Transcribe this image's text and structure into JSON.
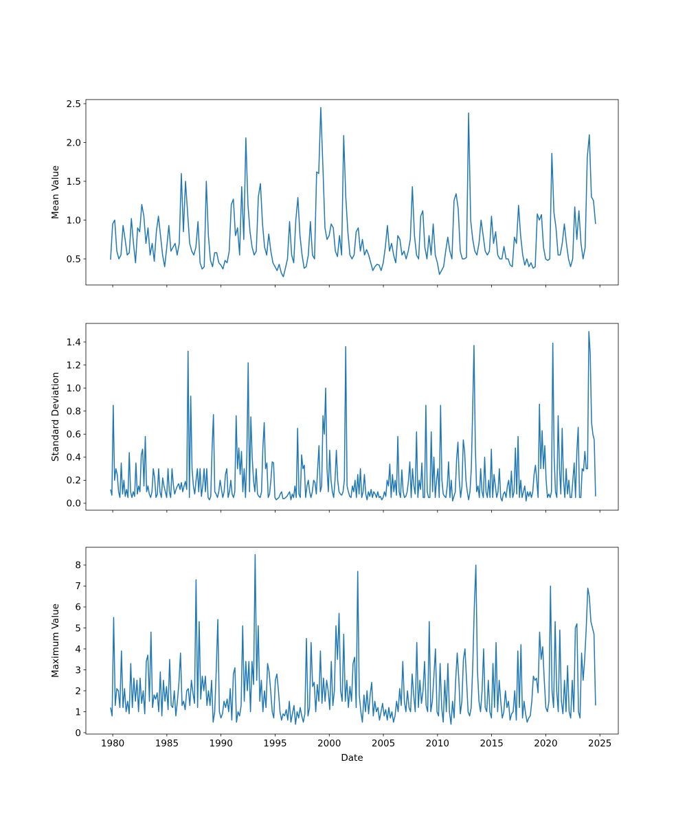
{
  "chart_data": [
    {
      "type": "line",
      "ylabel": "Mean Value",
      "xlabel": "",
      "xlim": [
        1977.52,
        2026.7
      ],
      "ylim": [
        0.164,
        2.553
      ],
      "yticks": [
        0.5,
        1.0,
        1.5,
        2.0,
        2.5
      ],
      "ytick_labels": [
        "0.5",
        "1.0",
        "1.5",
        "2.0",
        "2.5"
      ],
      "x_start": 1979.8,
      "x_end": 2024.6,
      "color": "#1f77b4",
      "values": [
        0.49,
        0.95,
        1.0,
        0.6,
        0.5,
        0.55,
        0.93,
        0.75,
        0.55,
        0.58,
        1.02,
        0.7,
        0.45,
        0.9,
        0.85,
        1.2,
        1.05,
        0.7,
        0.9,
        0.55,
        0.7,
        0.47,
        0.85,
        1.05,
        0.8,
        0.55,
        0.4,
        0.65,
        0.93,
        0.6,
        0.65,
        0.7,
        0.55,
        0.7,
        1.6,
        0.85,
        1.5,
        1.1,
        0.7,
        0.6,
        0.55,
        0.65,
        0.98,
        0.45,
        0.37,
        0.4,
        1.5,
        0.8,
        0.48,
        0.4,
        0.58,
        0.58,
        0.45,
        0.42,
        0.37,
        0.48,
        0.45,
        0.6,
        1.2,
        1.27,
        0.8,
        0.9,
        0.55,
        1.43,
        0.75,
        2.06,
        1.2,
        0.85,
        0.65,
        0.55,
        0.6,
        1.3,
        1.47,
        0.95,
        0.65,
        0.55,
        0.82,
        0.6,
        0.45,
        0.4,
        0.35,
        0.43,
        0.32,
        0.27,
        0.38,
        0.5,
        0.98,
        0.55,
        0.45,
        1.0,
        1.29,
        0.8,
        0.55,
        0.38,
        0.4,
        0.55,
        0.98,
        0.55,
        0.5,
        1.62,
        1.6,
        2.45,
        1.7,
        0.9,
        0.75,
        0.8,
        0.95,
        0.9,
        0.6,
        0.53,
        0.8,
        0.55,
        2.09,
        1.3,
        0.85,
        0.55,
        0.5,
        0.55,
        0.85,
        0.9,
        0.6,
        0.75,
        0.55,
        0.62,
        0.55,
        0.45,
        0.35,
        0.4,
        0.43,
        0.42,
        0.35,
        0.45,
        0.65,
        0.93,
        0.6,
        0.7,
        0.55,
        0.45,
        0.8,
        0.75,
        0.55,
        0.6,
        0.5,
        0.6,
        0.75,
        1.43,
        0.8,
        0.55,
        0.5,
        1.05,
        1.12,
        0.65,
        0.5,
        0.8,
        0.55,
        0.95,
        0.55,
        0.45,
        0.3,
        0.35,
        0.4,
        0.6,
        0.78,
        0.6,
        0.5,
        1.25,
        1.34,
        1.15,
        0.6,
        0.5,
        0.5,
        0.52,
        2.38,
        1.0,
        0.75,
        0.6,
        0.55,
        0.7,
        1.0,
        0.8,
        0.6,
        0.55,
        0.6,
        1.05,
        0.7,
        0.85,
        0.55,
        0.5,
        0.5,
        0.66,
        0.5,
        0.5,
        0.42,
        0.4,
        0.78,
        0.7,
        1.19,
        0.8,
        0.55,
        0.42,
        0.5,
        0.4,
        0.45,
        0.38,
        0.4,
        1.08,
        1.0,
        1.07,
        0.65,
        0.5,
        0.48,
        0.5,
        1.86,
        1.1,
        0.9,
        0.55,
        0.55,
        0.7,
        0.95,
        0.7,
        0.5,
        0.4,
        0.5,
        1.17,
        0.75,
        1.12,
        0.7,
        0.5,
        0.65,
        1.8,
        2.1,
        1.3,
        1.25,
        0.95
      ]
    },
    {
      "type": "line",
      "ylabel": "Standard Deviation",
      "xlabel": "",
      "xlim": [
        1977.52,
        2026.7
      ],
      "ylim": [
        -0.06,
        1.561
      ],
      "yticks": [
        0.0,
        0.2,
        0.4,
        0.6,
        0.8,
        1.0,
        1.2,
        1.4
      ],
      "ytick_labels": [
        "0.0",
        "0.2",
        "0.4",
        "0.6",
        "0.8",
        "1.0",
        "1.2",
        "1.4"
      ],
      "x_start": 1979.8,
      "x_end": 2024.6,
      "color": "#1f77b4",
      "values": [
        0.12,
        0.07,
        0.85,
        0.2,
        0.3,
        0.25,
        0.1,
        0.05,
        0.35,
        0.08,
        0.2,
        0.06,
        0.12,
        0.05,
        0.44,
        0.1,
        0.05,
        0.1,
        0.06,
        0.35,
        0.08,
        0.15,
        0.1,
        0.42,
        0.47,
        0.15,
        0.58,
        0.1,
        0.15,
        0.08,
        0.05,
        0.1,
        0.3,
        0.22,
        0.05,
        0.08,
        0.3,
        0.1,
        0.05,
        0.22,
        0.15,
        0.1,
        0.05,
        0.3,
        0.1,
        0.05,
        0.3,
        0.16,
        0.08,
        0.12,
        0.15,
        0.17,
        0.12,
        0.18,
        0.1,
        0.15,
        0.19,
        0.12,
        1.32,
        0.05,
        0.93,
        0.3,
        0.15,
        0.08,
        0.2,
        0.3,
        0.1,
        0.3,
        0.06,
        0.15,
        0.3,
        0.1,
        0.3,
        0.05,
        0.03,
        0.06,
        0.48,
        0.77,
        0.1,
        0.08,
        0.05,
        0.1,
        0.2,
        0.12,
        0.05,
        0.1,
        0.25,
        0.3,
        0.05,
        0.1,
        0.2,
        0.08,
        0.05,
        0.1,
        0.76,
        0.3,
        0.48,
        0.25,
        0.45,
        0.1,
        0.3,
        0.05,
        0.4,
        1.22,
        0.1,
        0.75,
        0.4,
        0.2,
        0.1,
        0.3,
        0.08,
        0.06,
        0.05,
        0.1,
        0.48,
        0.7,
        0.3,
        0.35,
        0.05,
        0.08,
        0.2,
        0.36,
        0.35,
        0.05,
        0.03,
        0.04,
        0.05,
        0.08,
        0.1,
        0.04,
        0.04,
        0.05,
        0.06,
        0.08,
        0.1,
        0.03,
        0.08,
        0.05,
        0.15,
        0.05,
        0.65,
        0.08,
        0.05,
        0.42,
        0.3,
        0.33,
        0.05,
        0.15,
        0.2,
        0.1,
        0.05,
        0.1,
        0.2,
        0.18,
        0.08,
        0.3,
        0.5,
        0.1,
        0.15,
        0.76,
        0.6,
        1.0,
        0.3,
        0.1,
        0.46,
        0.2,
        0.1,
        0.05,
        0.2,
        0.46,
        0.2,
        0.1,
        0.08,
        0.07,
        0.1,
        0.2,
        1.36,
        0.15,
        0.1,
        0.06,
        0.05,
        0.15,
        0.1,
        0.2,
        0.05,
        0.25,
        0.08,
        0.3,
        0.05,
        0.1,
        0.25,
        0.08,
        0.03,
        0.1,
        0.06,
        0.12,
        0.05,
        0.1,
        0.08,
        0.05,
        0.1,
        0.05,
        0.06,
        0.03,
        0.05,
        0.1,
        0.06,
        0.2,
        0.15,
        0.34,
        0.05,
        0.25,
        0.1,
        0.2,
        0.07,
        0.58,
        0.1,
        0.05,
        0.29,
        0.1,
        0.05,
        0.06,
        0.1,
        0.2,
        0.36,
        0.05,
        0.3,
        0.15,
        0.08,
        0.62,
        0.05,
        0.2,
        0.12,
        0.35,
        0.05,
        0.05,
        0.85,
        0.1,
        0.05,
        0.05,
        0.62,
        0.1,
        0.4,
        0.05,
        0.2,
        0.3,
        0.05,
        0.85,
        0.2,
        0.08,
        0.06,
        0.05,
        0.15,
        0.36,
        0.05,
        0.2,
        0.02,
        0.06,
        0.1,
        0.38,
        0.53,
        0.2,
        0.05,
        0.15,
        0.55,
        0.45,
        0.2,
        0.1,
        0.03,
        0.1,
        0.3,
        0.8,
        1.37,
        0.5,
        0.1,
        0.15,
        0.05,
        0.3,
        0.1,
        0.05,
        0.4,
        0.1,
        0.05,
        0.2,
        0.05,
        0.47,
        0.05,
        0.25,
        0.15,
        0.05,
        0.1,
        0.3,
        0.05,
        0.02,
        0.08,
        0.1,
        0.05,
        0.15,
        0.2,
        0.05,
        0.28,
        0.05,
        0.1,
        0.48,
        0.08,
        0.58,
        0.05,
        0.2,
        0.05,
        0.1,
        0.15,
        0.02,
        0.1,
        0.06,
        0.1,
        0.05,
        0.1,
        0.25,
        0.33,
        0.2,
        0.05,
        0.86,
        0.3,
        0.63,
        0.3,
        0.5,
        0.2,
        0.05,
        0.08,
        0.05,
        0.1,
        1.39,
        0.4,
        0.1,
        0.05,
        0.76,
        0.3,
        0.08,
        0.65,
        0.2,
        0.05,
        0.3,
        0.08,
        0.2,
        0.05,
        0.05,
        0.2,
        0.35,
        0.05,
        0.45,
        0.66,
        0.05,
        0.05,
        0.3,
        0.28,
        0.45,
        0.3,
        0.3,
        1.49,
        1.3,
        0.7,
        0.6,
        0.55,
        0.06
      ]
    },
    {
      "type": "line",
      "ylabel": "Maximum Value",
      "xlabel": "Date",
      "xlim": [
        1977.52,
        2026.7
      ],
      "ylim": [
        -0.066,
        8.85
      ],
      "yticks": [
        0,
        1,
        2,
        3,
        4,
        5,
        6,
        7,
        8
      ],
      "ytick_labels": [
        "0",
        "1",
        "2",
        "3",
        "4",
        "5",
        "6",
        "7",
        "8"
      ],
      "x_start": 1979.8,
      "x_end": 2024.6,
      "color": "#1f77b4",
      "values": [
        1.2,
        0.8,
        5.5,
        1.3,
        2.1,
        2.0,
        1.2,
        3.9,
        1.2,
        2.1,
        1.0,
        1.5,
        0.9,
        3.3,
        1.2,
        2.6,
        1.5,
        2.5,
        1.0,
        2.6,
        1.4,
        2.0,
        0.9,
        3.4,
        3.7,
        1.5,
        4.8,
        1.2,
        1.8,
        1.6,
        1.9,
        1.0,
        2.9,
        0.8,
        2.5,
        1.5,
        2.2,
        1.1,
        3.5,
        1.3,
        1.2,
        2.0,
        0.8,
        1.5,
        2.4,
        3.8,
        1.3,
        1.5,
        1.1,
        2.0,
        2.1,
        1.3,
        2.5,
        1.9,
        1.4,
        7.3,
        1.2,
        5.3,
        1.6,
        2.7,
        2.0,
        2.7,
        1.3,
        2.0,
        1.3,
        2.5,
        0.5,
        1.0,
        3.0,
        5.4,
        1.0,
        0.7,
        0.9,
        1.5,
        1.2,
        1.6,
        1.0,
        2.1,
        0.6,
        2.8,
        3.1,
        0.5,
        1.0,
        0.8,
        1.3,
        5.1,
        1.5,
        3.4,
        2.0,
        3.4,
        1.0,
        3.4,
        2.3,
        8.5,
        2.5,
        5.1,
        1.5,
        2.5,
        1.0,
        2.0,
        1.2,
        3.3,
        2.9,
        2.0,
        1.0,
        0.7,
        2.5,
        2.8,
        2.0,
        1.0,
        0.6,
        0.9,
        0.8,
        1.1,
        0.6,
        1.5,
        0.5,
        0.9,
        1.3,
        0.4,
        1.0,
        0.7,
        1.2,
        0.8,
        0.5,
        0.9,
        4.5,
        0.8,
        1.2,
        4.3,
        2.2,
        2.4,
        1.0,
        2.3,
        1.5,
        3.9,
        1.4,
        2.6,
        1.5,
        2.5,
        2.0,
        1.1,
        3.4,
        1.3,
        2.0,
        5.1,
        3.5,
        5.7,
        2.0,
        1.5,
        4.7,
        1.5,
        2.5,
        1.2,
        2.2,
        1.5,
        3.3,
        3.6,
        1.2,
        7.7,
        1.8,
        1.0,
        0.5,
        1.8,
        1.0,
        2.0,
        0.9,
        1.8,
        2.4,
        0.8,
        1.5,
        1.0,
        1.2,
        0.6,
        1.0,
        1.4,
        0.8,
        1.1,
        0.6,
        1.2,
        0.7,
        1.0,
        0.5,
        0.8,
        1.5,
        1.0,
        2.1,
        1.3,
        3.4,
        1.5,
        1.0,
        2.0,
        1.2,
        1.0,
        2.8,
        1.8,
        1.0,
        4.3,
        1.2,
        2.5,
        1.4,
        2.0,
        3.4,
        1.3,
        1.0,
        5.3,
        1.0,
        1.5,
        2.7,
        4.0,
        1.0,
        0.8,
        3.3,
        1.2,
        0.5,
        2.5,
        1.0,
        3.3,
        1.0,
        0.4,
        1.5,
        0.7,
        2.5,
        3.8,
        2.6,
        0.9,
        1.5,
        3.5,
        4.0,
        2.5,
        1.0,
        0.8,
        1.2,
        3.2,
        6.0,
        8.0,
        3.0,
        1.5,
        1.0,
        2.0,
        4.0,
        1.2,
        1.0,
        2.5,
        1.0,
        0.7,
        3.3,
        1.2,
        4.3,
        1.0,
        2.5,
        1.5,
        0.7,
        1.0,
        2.0,
        1.2,
        1.5,
        0.6,
        0.9,
        1.0,
        2.0,
        0.6,
        3.9,
        1.2,
        4.2,
        0.7,
        1.5,
        0.9,
        0.5,
        0.7,
        0.8,
        1.5,
        2.7,
        2.5,
        2.6,
        1.9,
        4.8,
        3.5,
        4.1,
        2.5,
        1.2,
        1.0,
        1.5,
        7.0,
        2.0,
        1.2,
        5.3,
        2.0,
        1.0,
        4.9,
        1.5,
        0.9,
        2.5,
        1.0,
        3.2,
        1.0,
        0.7,
        2.5,
        1.0,
        5.0,
        5.2,
        1.0,
        0.7,
        3.8,
        2.5,
        3.5,
        5.0,
        6.9,
        6.5,
        5.3,
        5.0,
        4.7,
        1.3
      ]
    }
  ],
  "x_axis": {
    "ticks": [
      1980,
      1985,
      1990,
      1995,
      2000,
      2005,
      2010,
      2015,
      2020,
      2025
    ],
    "tick_labels": [
      "1980",
      "1985",
      "1990",
      "1995",
      "2000",
      "2005",
      "2010",
      "2015",
      "2020",
      "2025"
    ],
    "label": "Date",
    "shared": true
  }
}
